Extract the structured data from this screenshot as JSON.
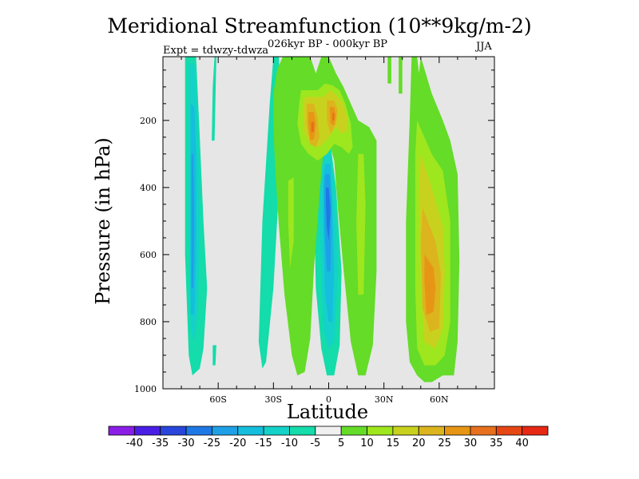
{
  "chart_data": {
    "type": "heatmap",
    "title": "Meridional Streamfunction (10**9kg/m-2)",
    "subtitle": "026kyr BP - 000kyr BP",
    "season": "JJA",
    "experiment": "Expt = tdwzy-tdwza",
    "xlabel": "Latitude",
    "ylabel": "Pressure (in hPa)",
    "xlim": [
      -90,
      90
    ],
    "ylim": [
      1000,
      10
    ],
    "x_ticks": [
      {
        "value": -60,
        "label": "60S"
      },
      {
        "value": -30,
        "label": "30S"
      },
      {
        "value": 0,
        "label": "0"
      },
      {
        "value": 30,
        "label": "30N"
      },
      {
        "value": 60,
        "label": "60N"
      }
    ],
    "y_ticks": [
      {
        "value": 200,
        "label": "200"
      },
      {
        "value": 400,
        "label": "400"
      },
      {
        "value": 600,
        "label": "600"
      },
      {
        "value": 800,
        "label": "800"
      },
      {
        "value": 1000,
        "label": "1000"
      }
    ],
    "background_color": "#e6e6e6",
    "colorbar": {
      "labels": [
        "-40",
        "-35",
        "-30",
        "-25",
        "-20",
        "-15",
        "-10",
        "-5",
        "5",
        "10",
        "15",
        "20",
        "25",
        "30",
        "35",
        "40"
      ],
      "levels": [
        -40,
        -35,
        -30,
        -25,
        -20,
        -15,
        -10,
        -5,
        5,
        10,
        15,
        20,
        25,
        30,
        35,
        40
      ],
      "colors": [
        "#8a1ee6",
        "#4b1ee6",
        "#2846dc",
        "#1e78e6",
        "#1ea0e6",
        "#14bedc",
        "#14d2c8",
        "#14dcaa",
        "#f0f0f0",
        "#64dc28",
        "#9ee61e",
        "#c8d21e",
        "#dcb41e",
        "#e69614",
        "#e6701e",
        "#e64614",
        "#e62814"
      ]
    },
    "contours": [
      {
        "level": 7,
        "x": [
          -78,
          -72,
          -70,
          -68,
          -66,
          -68,
          -70,
          -74,
          -76,
          -78
        ],
        "y": [
          10,
          10,
          250,
          500,
          700,
          880,
          940,
          960,
          900,
          600
        ]
      },
      {
        "level": 6,
        "x": [
          -76,
          -73,
          -71,
          -70,
          -71,
          -73,
          -75,
          -76
        ],
        "y": [
          30,
          30,
          200,
          500,
          760,
          860,
          820,
          500
        ]
      },
      {
        "level": 5,
        "x": [
          -75,
          -73,
          -72,
          -72,
          -73,
          -75,
          -75
        ],
        "y": [
          150,
          160,
          300,
          600,
          780,
          780,
          500
        ]
      },
      {
        "level": 4,
        "x": [
          -74.5,
          -73.5,
          -73,
          -73.5,
          -74.5
        ],
        "y": [
          300,
          300,
          500,
          700,
          700
        ]
      },
      {
        "level": 7,
        "x": [
          -30,
          -27,
          -26,
          -30,
          -34,
          -36,
          -38,
          -36,
          -32
        ],
        "y": [
          10,
          10,
          300,
          700,
          920,
          940,
          860,
          500,
          150
        ]
      },
      {
        "level": 7,
        "x": [
          -62,
          -61,
          -62,
          -63.5,
          -63
        ],
        "y": [
          10,
          10,
          260,
          260,
          100
        ]
      },
      {
        "level": 7,
        "x": [
          -63,
          -61,
          -61.5,
          -63
        ],
        "y": [
          870,
          870,
          930,
          930
        ]
      },
      {
        "level": 7,
        "x": [
          -4,
          1,
          4,
          7,
          6,
          3,
          -1,
          -4,
          -7,
          -8,
          -8
        ],
        "y": [
          280,
          270,
          400,
          650,
          870,
          960,
          960,
          880,
          700,
          450,
          340
        ]
      },
      {
        "level": 6,
        "x": [
          -3,
          1,
          3,
          5,
          3,
          0,
          -3,
          -5,
          -5
        ],
        "y": [
          300,
          300,
          400,
          650,
          860,
          880,
          820,
          500,
          350
        ]
      },
      {
        "level": 5,
        "x": [
          -2,
          1,
          2,
          3,
          2,
          0,
          -2,
          -3,
          -3
        ],
        "y": [
          330,
          330,
          450,
          650,
          800,
          800,
          720,
          500,
          380
        ]
      },
      {
        "level": 4,
        "x": [
          -2,
          0.5,
          1.5,
          1,
          -1,
          -2,
          -2.5
        ],
        "y": [
          360,
          360,
          450,
          650,
          650,
          550,
          420
        ]
      },
      {
        "level": 3,
        "x": [
          -1.5,
          0,
          1,
          0,
          -1,
          -1.5
        ],
        "y": [
          400,
          400,
          470,
          560,
          520,
          450
        ]
      },
      {
        "level": 9,
        "x": [
          -20,
          -10,
          -7,
          -4,
          0,
          4,
          8,
          12,
          16,
          22,
          26,
          26,
          24,
          20,
          16,
          12,
          8,
          5,
          3,
          0,
          -3,
          -5,
          -8,
          -10,
          -13,
          -17,
          -20,
          -24,
          -27,
          -29,
          -30,
          -30,
          -28,
          -25,
          -23,
          -22
        ],
        "y": [
          10,
          10,
          60,
          10,
          10,
          60,
          100,
          150,
          200,
          220,
          260,
          650,
          870,
          960,
          960,
          860,
          640,
          460,
          320,
          260,
          300,
          420,
          640,
          850,
          950,
          960,
          900,
          720,
          520,
          350,
          220,
          120,
          50,
          10,
          10,
          10
        ]
      },
      {
        "level": 10,
        "x": [
          -15,
          -6,
          -2,
          2,
          6,
          9,
          12,
          13,
          11,
          7,
          3,
          -1,
          -6,
          -11,
          -15,
          -17,
          -16
        ],
        "y": [
          110,
          110,
          90,
          95,
          110,
          150,
          210,
          280,
          300,
          280,
          270,
          300,
          320,
          300,
          270,
          210,
          150
        ]
      },
      {
        "level": 11,
        "x": [
          -13,
          -8,
          -3,
          1,
          5,
          8,
          10,
          10,
          7,
          4,
          0,
          -5,
          -10,
          -13,
          -14
        ],
        "y": [
          130,
          130,
          130,
          110,
          130,
          150,
          190,
          230,
          240,
          220,
          250,
          280,
          270,
          240,
          180
        ]
      },
      {
        "level": 12,
        "x": [
          -12,
          -8,
          -6,
          -5,
          -7,
          -10,
          -12
        ],
        "y": [
          150,
          150,
          190,
          250,
          280,
          270,
          210
        ]
      },
      {
        "level": 12,
        "x": [
          -1,
          3,
          5,
          4,
          1,
          -1
        ],
        "y": [
          140,
          140,
          170,
          210,
          240,
          200
        ]
      },
      {
        "level": 13,
        "x": [
          -11,
          -8,
          -7,
          -8,
          -10,
          -11
        ],
        "y": [
          175,
          175,
          210,
          255,
          260,
          215
        ]
      },
      {
        "level": 13,
        "x": [
          0.5,
          3,
          4,
          3,
          1
        ],
        "y": [
          160,
          160,
          185,
          215,
          210
        ]
      },
      {
        "level": 14,
        "x": [
          2,
          3,
          3,
          2
        ],
        "y": [
          178,
          178,
          200,
          200
        ]
      },
      {
        "level": 14,
        "x": [
          -9.5,
          -8,
          -8,
          -9.5
        ],
        "y": [
          205,
          205,
          235,
          235
        ]
      },
      {
        "level": 10,
        "x": [
          -22,
          -19,
          -19,
          -21,
          -22
        ],
        "y": [
          380,
          370,
          560,
          640,
          500
        ]
      },
      {
        "level": 10,
        "x": [
          16,
          19,
          20,
          19,
          16,
          15
        ],
        "y": [
          300,
          300,
          450,
          720,
          720,
          500
        ]
      },
      {
        "level": 9,
        "x": [
          45,
          48,
          49,
          50,
          56,
          62,
          66,
          70,
          71,
          70,
          68,
          62,
          56,
          52,
          48,
          44,
          42,
          42,
          44,
          45
        ],
        "y": [
          10,
          10,
          60,
          10,
          120,
          200,
          260,
          360,
          620,
          860,
          960,
          960,
          980,
          980,
          960,
          920,
          800,
          500,
          200,
          10
        ]
      },
      {
        "level": 10,
        "x": [
          48,
          56,
          62,
          66,
          66,
          63,
          58,
          52,
          48,
          47,
          47
        ],
        "y": [
          200,
          300,
          350,
          500,
          800,
          900,
          930,
          930,
          880,
          700,
          300
        ]
      },
      {
        "level": 11,
        "x": [
          50,
          57,
          62,
          63,
          62,
          58,
          52,
          50,
          49
        ],
        "y": [
          300,
          420,
          520,
          650,
          820,
          880,
          860,
          700,
          420
        ]
      },
      {
        "level": 12,
        "x": [
          51,
          58,
          61,
          60,
          55,
          51,
          50
        ],
        "y": [
          460,
          560,
          660,
          820,
          830,
          760,
          560
        ]
      },
      {
        "level": 13,
        "x": [
          52,
          57,
          58,
          57,
          53,
          52
        ],
        "y": [
          600,
          640,
          700,
          770,
          780,
          680
        ]
      },
      {
        "level": 9,
        "x": [
          32,
          34,
          34,
          32
        ],
        "y": [
          10,
          10,
          90,
          90
        ]
      },
      {
        "level": 9,
        "x": [
          38,
          40,
          40,
          38
        ],
        "y": [
          10,
          10,
          120,
          120
        ]
      }
    ]
  }
}
